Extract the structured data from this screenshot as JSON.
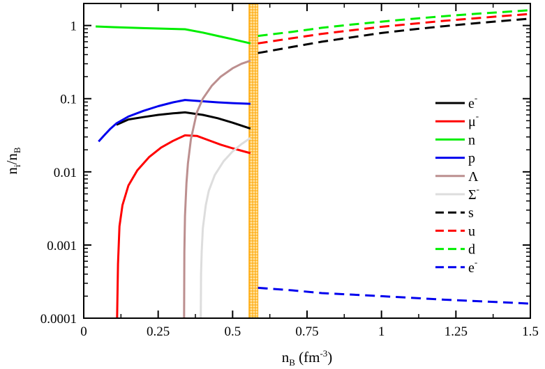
{
  "chart_data": {
    "type": "line",
    "title": "",
    "xlabel": {
      "main": "n",
      "sub": "B",
      "unit": " (fm",
      "unit_sup": "-3",
      "unit_close": ")"
    },
    "ylabel": {
      "main": "n",
      "sub1": "i",
      "mid": "/n",
      "sub2": "B"
    },
    "xlim": [
      0,
      1.5
    ],
    "ylim": [
      0.0001,
      2
    ],
    "yscale": "log",
    "xticks": [
      0,
      0.25,
      0.5,
      0.75,
      1,
      1.25,
      1.5
    ],
    "xtick_labels": [
      "0",
      "0.25",
      "0.5",
      "0.75",
      "1",
      "1.25",
      "1.5"
    ],
    "yticks": [
      0.0001,
      0.001,
      0.01,
      0.1,
      1
    ],
    "ytick_labels": [
      "0.0001",
      "0.001",
      "0.01",
      "0.1",
      "1"
    ],
    "mixed_phase": {
      "x_range": [
        0.555,
        0.585
      ],
      "color": "#FFA500"
    },
    "legend_position": "right",
    "series": [
      {
        "name": "e",
        "sup": "-",
        "color": "#000000",
        "dash": false,
        "x": [
          0.11,
          0.15,
          0.2,
          0.25,
          0.3,
          0.34,
          0.4,
          0.45,
          0.5,
          0.56
        ],
        "y": [
          0.044,
          0.052,
          0.056,
          0.06,
          0.063,
          0.065,
          0.06,
          0.054,
          0.047,
          0.039
        ]
      },
      {
        "name": "μ",
        "sup": "-",
        "color": "#FF0000",
        "dash": false,
        "x": [
          0.112,
          0.115,
          0.12,
          0.13,
          0.15,
          0.18,
          0.22,
          0.26,
          0.3,
          0.34,
          0.38,
          0.42,
          0.46,
          0.5,
          0.56
        ],
        "y": [
          0.0001,
          0.00055,
          0.0018,
          0.0035,
          0.0065,
          0.0105,
          0.016,
          0.0215,
          0.0265,
          0.0315,
          0.031,
          0.027,
          0.0235,
          0.021,
          0.018
        ]
      },
      {
        "name": "n",
        "sup": "",
        "color": "#00EE00",
        "dash": false,
        "x": [
          0.04,
          0.1,
          0.2,
          0.34,
          0.4,
          0.45,
          0.5,
          0.56
        ],
        "y": [
          0.97,
          0.95,
          0.92,
          0.89,
          0.8,
          0.72,
          0.65,
          0.57
        ]
      },
      {
        "name": "p",
        "sup": "",
        "color": "#0000EE",
        "dash": false,
        "x": [
          0.05,
          0.07,
          0.09,
          0.11,
          0.15,
          0.2,
          0.25,
          0.3,
          0.34,
          0.4,
          0.45,
          0.5,
          0.56
        ],
        "y": [
          0.026,
          0.032,
          0.039,
          0.046,
          0.057,
          0.068,
          0.079,
          0.089,
          0.096,
          0.092,
          0.089,
          0.087,
          0.085
        ]
      },
      {
        "name": "Λ",
        "sup": "",
        "color": "#BC8F8F",
        "dash": false,
        "x": [
          0.337,
          0.338,
          0.34,
          0.345,
          0.35,
          0.36,
          0.38,
          0.4,
          0.43,
          0.46,
          0.5,
          0.53,
          0.56
        ],
        "y": [
          0.0001,
          0.0008,
          0.0025,
          0.007,
          0.013,
          0.028,
          0.065,
          0.1,
          0.15,
          0.2,
          0.26,
          0.3,
          0.33
        ]
      },
      {
        "name": "Σ",
        "sup": "-",
        "color": "#DDDDDD",
        "dash": false,
        "x": [
          0.393,
          0.394,
          0.396,
          0.4,
          0.41,
          0.42,
          0.44,
          0.47,
          0.5,
          0.53,
          0.56
        ],
        "y": [
          0.0001,
          0.0004,
          0.0008,
          0.0017,
          0.0035,
          0.0055,
          0.009,
          0.014,
          0.019,
          0.024,
          0.029
        ]
      },
      {
        "name": "s",
        "sup": "",
        "color": "#000000",
        "dash": true,
        "x": [
          0.585,
          0.7,
          0.8,
          0.9,
          1.0,
          1.1,
          1.2,
          1.3,
          1.4,
          1.5
        ],
        "y": [
          0.42,
          0.51,
          0.6,
          0.69,
          0.79,
          0.88,
          0.97,
          1.06,
          1.15,
          1.24
        ]
      },
      {
        "name": "u",
        "sup": "",
        "color": "#FF0000",
        "dash": true,
        "x": [
          0.585,
          0.7,
          0.8,
          0.9,
          1.0,
          1.1,
          1.2,
          1.3,
          1.4,
          1.5
        ],
        "y": [
          0.57,
          0.67,
          0.77,
          0.86,
          0.96,
          1.05,
          1.15,
          1.24,
          1.34,
          1.44
        ]
      },
      {
        "name": "d",
        "sup": "",
        "color": "#00EE00",
        "dash": true,
        "x": [
          0.585,
          0.7,
          0.8,
          0.9,
          1.0,
          1.1,
          1.2,
          1.3,
          1.4,
          1.5
        ],
        "y": [
          0.72,
          0.82,
          0.93,
          1.03,
          1.13,
          1.23,
          1.33,
          1.43,
          1.52,
          1.62
        ]
      },
      {
        "name": "e",
        "sup": "-",
        "color": "#0000EE",
        "dash": true,
        "x": [
          0.585,
          0.7,
          0.8,
          0.9,
          1.0,
          1.1,
          1.2,
          1.3,
          1.4,
          1.5
        ],
        "y": [
          0.00026,
          0.00024,
          0.00022,
          0.00021,
          0.0002,
          0.00019,
          0.00018,
          0.000172,
          0.000165,
          0.000158
        ]
      }
    ]
  }
}
